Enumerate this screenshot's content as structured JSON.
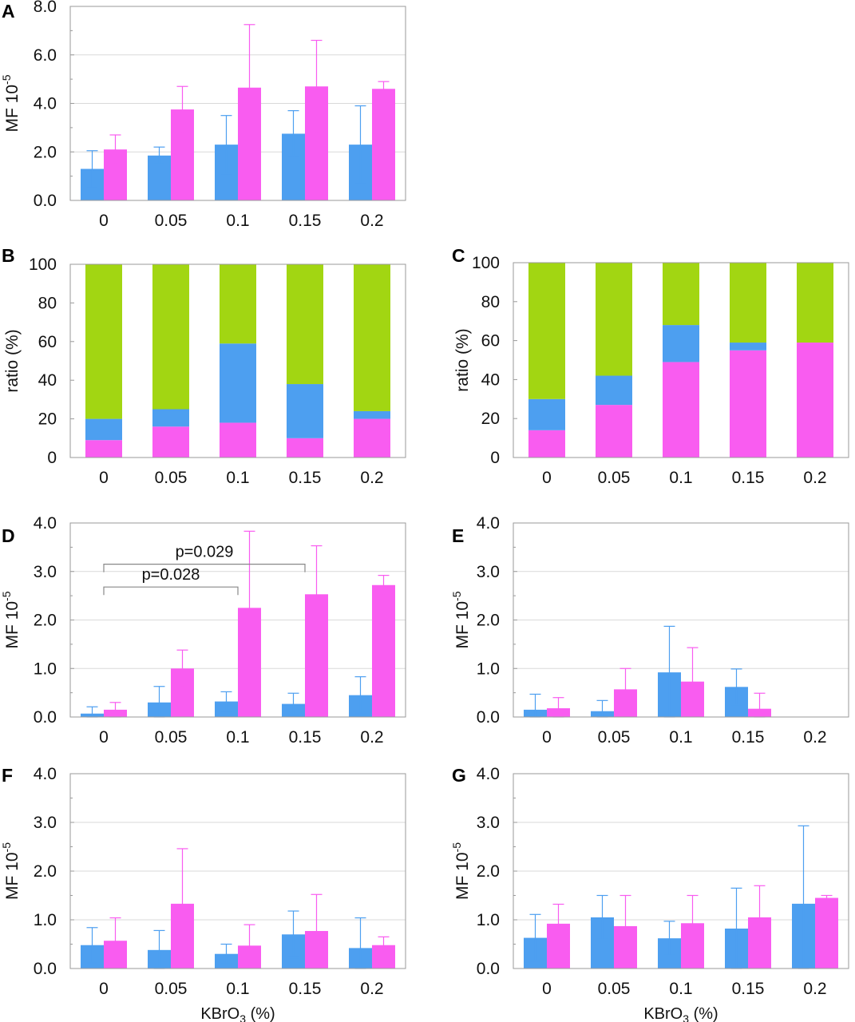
{
  "colors": {
    "blue": "#4d9ff0",
    "magenta": "#f95cf0",
    "green": "#a2d612",
    "grid": "#d9d9d9",
    "frame": "#9a9a9a",
    "bracket": "#888888"
  },
  "chart_data": [
    {
      "panel": "A",
      "type": "bar",
      "ylabel": "MF 10",
      "ylabel_sup": "-5",
      "categories": [
        "0",
        "0.05",
        "0.1",
        "0.15",
        "0.2"
      ],
      "ylim": [
        0,
        8
      ],
      "yticks": [
        0,
        2,
        4,
        6,
        8
      ],
      "ytick_labels": [
        "0.0",
        "2.0",
        "4.0",
        "6.0",
        "8.0"
      ],
      "grid": true,
      "series": [
        {
          "color": "blue",
          "values": [
            1.3,
            1.85,
            2.3,
            2.75,
            2.3
          ],
          "err": [
            0.75,
            0.35,
            1.2,
            0.95,
            1.6
          ]
        },
        {
          "color": "magenta",
          "values": [
            2.1,
            3.75,
            4.65,
            4.7,
            4.6
          ],
          "err": [
            0.6,
            0.95,
            2.6,
            1.9,
            0.3
          ]
        }
      ]
    },
    {
      "panel": "B",
      "type": "stacked-bar",
      "ylabel": "ratio (%)",
      "categories": [
        "0",
        "0.05",
        "0.1",
        "0.15",
        "0.2"
      ],
      "ylim": [
        0,
        100
      ],
      "yticks": [
        0,
        20,
        40,
        60,
        80,
        100
      ],
      "ytick_labels": [
        "0",
        "20",
        "40",
        "60",
        "80",
        "100"
      ],
      "series": [
        {
          "color": "magenta",
          "values": [
            9,
            16,
            18,
            10,
            20
          ]
        },
        {
          "color": "blue",
          "values": [
            11,
            9,
            41,
            28,
            4
          ]
        },
        {
          "color": "green",
          "values": [
            80,
            75,
            41,
            62,
            76
          ]
        }
      ]
    },
    {
      "panel": "C",
      "type": "stacked-bar",
      "ylabel": "ratio (%)",
      "categories": [
        "0",
        "0.05",
        "0.1",
        "0.15",
        "0.2"
      ],
      "ylim": [
        0,
        100
      ],
      "yticks": [
        0,
        20,
        40,
        60,
        80,
        100
      ],
      "ytick_labels": [
        "0",
        "20",
        "40",
        "60",
        "80",
        "100"
      ],
      "series": [
        {
          "color": "magenta",
          "values": [
            14,
            27,
            49,
            55,
            59
          ]
        },
        {
          "color": "blue",
          "values": [
            16,
            15,
            19,
            4,
            0
          ]
        },
        {
          "color": "green",
          "values": [
            70,
            58,
            32,
            41,
            41
          ]
        }
      ]
    },
    {
      "panel": "D",
      "type": "bar",
      "ylabel": "MF 10",
      "ylabel_sup": "-5",
      "categories": [
        "0",
        "0.05",
        "0.1",
        "0.15",
        "0.2"
      ],
      "ylim": [
        0,
        4
      ],
      "yticks": [
        0,
        1,
        2,
        3,
        4
      ],
      "ytick_labels": [
        "0.0",
        "1.0",
        "2.0",
        "3.0",
        "4.0"
      ],
      "grid": true,
      "series": [
        {
          "color": "blue",
          "values": [
            0.07,
            0.3,
            0.32,
            0.27,
            0.45
          ],
          "err": [
            0.14,
            0.33,
            0.2,
            0.22,
            0.38
          ]
        },
        {
          "color": "magenta",
          "values": [
            0.15,
            1.0,
            2.25,
            2.53,
            2.72
          ],
          "err": [
            0.15,
            0.38,
            1.58,
            1.0,
            0.2
          ]
        }
      ],
      "annotations": [
        {
          "text": "p=0.029",
          "from": 0,
          "to": 3,
          "y": 3.15
        },
        {
          "text": "p=0.028",
          "from": 0,
          "to": 2,
          "y": 2.68
        }
      ]
    },
    {
      "panel": "E",
      "type": "bar",
      "ylabel": "MF 10",
      "ylabel_sup": "-5",
      "categories": [
        "0",
        "0.05",
        "0.1",
        "0.15",
        "0.2"
      ],
      "ylim": [
        0,
        4
      ],
      "yticks": [
        0,
        1,
        2,
        3,
        4
      ],
      "ytick_labels": [
        "0.0",
        "1.0",
        "2.0",
        "3.0",
        "4.0"
      ],
      "grid": true,
      "series": [
        {
          "color": "blue",
          "values": [
            0.15,
            0.12,
            0.92,
            0.62,
            0
          ],
          "err": [
            0.32,
            0.22,
            0.95,
            0.37,
            0
          ]
        },
        {
          "color": "magenta",
          "values": [
            0.18,
            0.57,
            0.73,
            0.17,
            0
          ],
          "err": [
            0.22,
            0.43,
            0.7,
            0.32,
            0
          ]
        }
      ]
    },
    {
      "panel": "F",
      "type": "bar",
      "ylabel": "MF 10",
      "ylabel_sup": "-5",
      "xlabel": "KBrO",
      "xlabel_sub": "3",
      "xlabel_suffix": " (%)",
      "categories": [
        "0",
        "0.05",
        "0.1",
        "0.15",
        "0.2"
      ],
      "ylim": [
        0,
        4
      ],
      "yticks": [
        0,
        1,
        2,
        3,
        4
      ],
      "ytick_labels": [
        "0.0",
        "1.0",
        "2.0",
        "3.0",
        "4.0"
      ],
      "grid": true,
      "series": [
        {
          "color": "blue",
          "values": [
            0.48,
            0.38,
            0.3,
            0.7,
            0.42
          ],
          "err": [
            0.36,
            0.4,
            0.2,
            0.48,
            0.62
          ]
        },
        {
          "color": "magenta",
          "values": [
            0.57,
            1.33,
            0.47,
            0.77,
            0.48
          ],
          "err": [
            0.47,
            1.13,
            0.43,
            0.75,
            0.17
          ]
        }
      ]
    },
    {
      "panel": "G",
      "type": "bar",
      "ylabel": "MF 10",
      "ylabel_sup": "-5",
      "xlabel": "KBrO",
      "xlabel_sub": "3",
      "xlabel_suffix": " (%)",
      "categories": [
        "0",
        "0.05",
        "0.1",
        "0.15",
        "0.2"
      ],
      "ylim": [
        0,
        4
      ],
      "yticks": [
        0,
        1,
        2,
        3,
        4
      ],
      "ytick_labels": [
        "0.0",
        "1.0",
        "2.0",
        "3.0",
        "4.0"
      ],
      "grid": true,
      "series": [
        {
          "color": "blue",
          "values": [
            0.63,
            1.05,
            0.62,
            0.82,
            1.33
          ],
          "err": [
            0.48,
            0.45,
            0.35,
            0.83,
            1.6
          ]
        },
        {
          "color": "magenta",
          "values": [
            0.92,
            0.87,
            0.93,
            1.05,
            1.45
          ],
          "err": [
            0.4,
            0.63,
            0.57,
            0.65,
            0.05
          ]
        }
      ]
    }
  ]
}
